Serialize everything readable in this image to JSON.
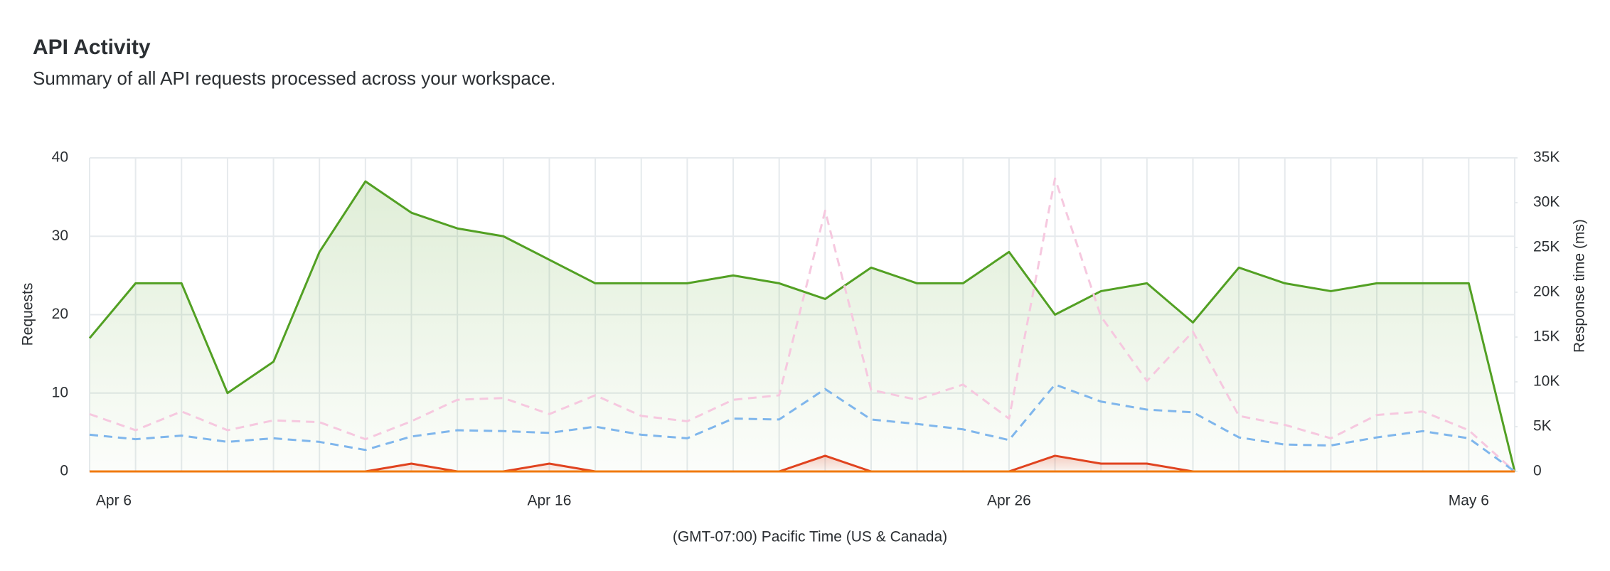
{
  "chart_data": {
    "type": "line",
    "title": "API Activity",
    "subtitle": "Summary of all API requests processed across your workspace.",
    "x_label": "(GMT-07:00) Pacific Time (US & Canada)",
    "y_label": "Requests",
    "y2_label": "Response time (ms)",
    "categories": [
      "Apr 6",
      null,
      null,
      null,
      null,
      null,
      null,
      null,
      null,
      null,
      "Apr 16",
      null,
      null,
      null,
      null,
      null,
      null,
      null,
      null,
      null,
      "Apr 26",
      null,
      null,
      null,
      null,
      null,
      null,
      null,
      null,
      null,
      "May 6",
      null
    ],
    "ylim": [
      0,
      40
    ],
    "yticks": [
      0,
      10,
      20,
      30,
      40
    ],
    "y2lim": [
      0,
      35000
    ],
    "y2ticks": [
      {
        "value": 0,
        "label": "0"
      },
      {
        "value": 5000,
        "label": "5K"
      },
      {
        "value": 10000,
        "label": "10K"
      },
      {
        "value": 15000,
        "label": "15K"
      },
      {
        "value": 20000,
        "label": "20K"
      },
      {
        "value": 25000,
        "label": "25K"
      },
      {
        "value": 30000,
        "label": "30K"
      },
      {
        "value": 35000,
        "label": "35K"
      }
    ],
    "grid": true,
    "series": [
      {
        "color": "#52a023",
        "area": true,
        "values": [
          17,
          24,
          24,
          10,
          14,
          28,
          37,
          33,
          31,
          30,
          27,
          24,
          24,
          24,
          25,
          24,
          22,
          26,
          24,
          24,
          28,
          20,
          23,
          24,
          19,
          26,
          24,
          23,
          24,
          24,
          24,
          0
        ]
      },
      {
        "color": "#f6c8df",
        "axis": "y2",
        "dashed": true,
        "values": [
          6400,
          4600,
          6700,
          4600,
          5700,
          5500,
          3600,
          5600,
          8000,
          8200,
          6400,
          8500,
          6200,
          5600,
          8000,
          8500,
          29100,
          9100,
          8000,
          9700,
          5900,
          32700,
          17300,
          10100,
          15600,
          6200,
          5200,
          3700,
          6300,
          6700,
          4600,
          0
        ]
      },
      {
        "color": "#7fb6ec",
        "axis": "y2",
        "dashed": true,
        "values": [
          4100,
          3600,
          4000,
          3300,
          3700,
          3300,
          2400,
          3900,
          4600,
          4500,
          4300,
          5000,
          4100,
          3700,
          5900,
          5800,
          9200,
          5800,
          5300,
          4700,
          3500,
          9700,
          7800,
          6900,
          6600,
          3800,
          3000,
          2900,
          3800,
          4500,
          3700,
          0
        ]
      },
      {
        "color": "#e0431f",
        "area": true,
        "values": [
          0,
          0,
          0,
          0,
          0,
          0,
          0,
          1,
          0,
          0,
          1,
          0,
          0,
          0,
          0,
          0,
          2,
          0,
          0,
          0,
          0,
          2,
          1,
          1,
          0,
          0,
          0,
          0,
          0,
          0,
          0,
          0
        ]
      },
      {
        "color": "#f07a10",
        "values": [
          0,
          0,
          0,
          0,
          0,
          0,
          0,
          0,
          0,
          0,
          0,
          0,
          0,
          0,
          0,
          0,
          0,
          0,
          0,
          0,
          0,
          0,
          0,
          0,
          0,
          0,
          0,
          0,
          0,
          0,
          0,
          0
        ]
      }
    ]
  }
}
